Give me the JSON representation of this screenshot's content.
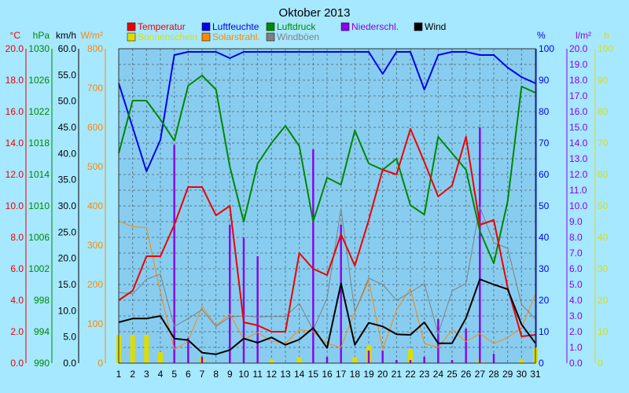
{
  "chart_data": {
    "type": "line",
    "title": "Oktober 2013",
    "x": [
      1,
      2,
      3,
      4,
      5,
      6,
      7,
      8,
      9,
      10,
      11,
      12,
      13,
      14,
      15,
      16,
      17,
      18,
      19,
      20,
      21,
      22,
      23,
      24,
      25,
      26,
      27,
      28,
      29,
      30,
      31
    ],
    "legend": [
      {
        "label": "Temperatur",
        "color": "#ee0000"
      },
      {
        "label": "Sonnenschein",
        "color": "#dddd00"
      },
      {
        "label": "Luftfeuchte",
        "color": "#0000ee"
      },
      {
        "label": "Solarstrahl.",
        "color": "#ff8800"
      },
      {
        "label": "Luftdruck",
        "color": "#008800"
      },
      {
        "label": "Windböen",
        "color": "#808080"
      },
      {
        "label": "Niederschl.",
        "color": "#8800ee"
      },
      {
        "label": "Wind",
        "color": "#000000"
      }
    ],
    "axes": {
      "left": [
        {
          "unit": "°C",
          "color": "#ee0000",
          "ticks": [
            "20.0",
            "18.0",
            "16.0",
            "14.0",
            "12.0",
            "10.0",
            "8.0",
            "6.0",
            "4.0",
            "2.0",
            "0.0"
          ]
        },
        {
          "unit": "hPa",
          "color": "#008800",
          "ticks": [
            "1030",
            "1026",
            "1022",
            "1018",
            "1014",
            "1010",
            "1006",
            "1002",
            "998",
            "994",
            "990"
          ]
        },
        {
          "unit": "km/h",
          "color": "#000000",
          "ticks": [
            "60.0",
            "55.0",
            "50.0",
            "45.0",
            "40.0",
            "35.0",
            "30.0",
            "25.0",
            "20.0",
            "15.0",
            "10.0",
            "5.0",
            "0.0"
          ]
        },
        {
          "unit": "W/m²",
          "color": "#ff8800",
          "ticks": [
            "800",
            "700",
            "600",
            "500",
            "400",
            "300",
            "200",
            "100",
            "0"
          ]
        }
      ],
      "right": [
        {
          "unit": "%",
          "color": "#0000ee",
          "ticks": [
            "100",
            "90",
            "80",
            "70",
            "60",
            "50",
            "40",
            "30",
            "20",
            "10",
            "0"
          ]
        },
        {
          "unit": "l/m²",
          "color": "#8800ee",
          "ticks": [
            "20.0",
            "19.0",
            "18.0",
            "17.0",
            "16.0",
            "15.0",
            "14.0",
            "13.0",
            "12.0",
            "11.0",
            "10.0",
            "9.0",
            "8.0",
            "7.0",
            "6.0",
            "5.0",
            "4.0",
            "3.0",
            "2.0",
            "1.0",
            "0.0"
          ]
        },
        {
          "unit": "h",
          "color": "#dddd00",
          "ticks": [
            "100",
            "90",
            "80",
            "70",
            "60",
            "50",
            "40",
            "30",
            "20",
            "10",
            "0"
          ]
        }
      ]
    },
    "series": [
      {
        "name": "Temperatur",
        "unit": "°C",
        "ylim": [
          0,
          20
        ],
        "color": "#ee0000",
        "values": [
          4.0,
          4.6,
          6.8,
          6.8,
          8.8,
          11.2,
          11.2,
          9.4,
          10.0,
          2.6,
          2.4,
          2.0,
          2.0,
          7.0,
          6.0,
          5.6,
          8.2,
          6.2,
          9.1,
          12.3,
          12.0,
          14.9,
          12.8,
          10.6,
          11.3,
          14.4,
          8.8,
          9.1,
          4.8,
          1.7,
          1.8
        ]
      },
      {
        "name": "Luftfeuchte",
        "unit": "%",
        "ylim": [
          0,
          100
        ],
        "color": "#0000ee",
        "values": [
          89,
          75,
          61,
          71,
          98,
          99,
          99,
          99,
          97,
          99,
          99,
          99,
          99,
          99,
          99,
          99,
          99,
          99,
          99,
          92,
          99,
          99,
          87,
          98,
          99,
          99,
          98,
          98,
          94,
          91,
          89
        ]
      },
      {
        "name": "Luftdruck",
        "unit": "hPa",
        "ylim": [
          990,
          1030
        ],
        "color": "#008800",
        "values": [
          1016.7,
          1023.4,
          1023.4,
          1021.0,
          1018.3,
          1025.3,
          1026.6,
          1024.8,
          1015.0,
          1008.0,
          1015.4,
          1018.0,
          1020.2,
          1017.6,
          1008.0,
          1013.6,
          1012.7,
          1019.6,
          1015.4,
          1014.6,
          1016.0,
          1010.1,
          1008.9,
          1018.8,
          1016.7,
          1014.6,
          1006.8,
          1002.7,
          1010.6,
          1025.2,
          1024.4
        ]
      },
      {
        "name": "Wind",
        "unit": "km/h",
        "ylim": [
          0,
          60
        ],
        "color": "#000000",
        "values": [
          7.8,
          8.5,
          8.5,
          9.0,
          4.7,
          4.4,
          2.0,
          1.7,
          2.5,
          4.7,
          3.9,
          4.9,
          3.5,
          4.5,
          6.7,
          2.9,
          15.2,
          3.5,
          7.7,
          7.0,
          5.5,
          5.4,
          7.8,
          3.8,
          3.8,
          8.6,
          16.0,
          15.0,
          14.1,
          7.4,
          3.8
        ]
      },
      {
        "name": "Windböen",
        "unit": "km/h",
        "ylim": [
          0,
          60
        ],
        "color": "#808080",
        "values": [
          13.5,
          13.2,
          16.0,
          17.0,
          7.0,
          8.5,
          10.2,
          7.0,
          8.8,
          9.0,
          8.8,
          8.9,
          8.9,
          11.4,
          6.3,
          12.4,
          29.5,
          9.8,
          16.2,
          15.0,
          12.0,
          13.5,
          15.2,
          5.6,
          13.8,
          15.2,
          29.8,
          23.0,
          21.9,
          11.2,
          8.4
        ]
      },
      {
        "name": "Solarstrahl.",
        "unit": "W/m²",
        "ylim": [
          0,
          800
        ],
        "color": "#ff8800",
        "values": [
          362,
          347,
          345,
          180,
          35,
          55,
          145,
          95,
          125,
          60,
          78,
          56,
          50,
          85,
          80,
          50,
          40,
          130,
          210,
          35,
          135,
          190,
          50,
          40,
          85,
          55,
          75,
          50,
          65,
          90,
          175
        ]
      },
      {
        "name": "Niederschl.",
        "unit": "l/m²",
        "ylim": [
          0,
          20
        ],
        "type": "bar",
        "color": "#8800ee",
        "values": [
          0,
          0,
          0,
          0,
          13.9,
          1.6,
          0.4,
          0,
          8.8,
          8.0,
          6.8,
          0,
          0,
          0,
          13.6,
          0.4,
          8.8,
          0,
          0.8,
          0.8,
          0.2,
          0.2,
          0.4,
          2.8,
          0.2,
          2.2,
          15.0,
          0.6,
          0,
          0,
          0
        ]
      },
      {
        "name": "Sonnenschein",
        "unit": "h",
        "ylim": [
          0,
          100
        ],
        "type": "bar",
        "color": "#dddd00",
        "values": [
          9.0,
          9.0,
          9.0,
          3.5,
          0,
          0,
          2.0,
          0,
          0,
          0,
          0,
          1.0,
          0,
          2.0,
          0,
          0,
          0,
          2.0,
          5.5,
          0,
          0,
          4.5,
          0,
          0,
          0,
          0,
          1.0,
          0,
          0,
          1.0,
          5.0
        ]
      }
    ],
    "grid": true
  }
}
